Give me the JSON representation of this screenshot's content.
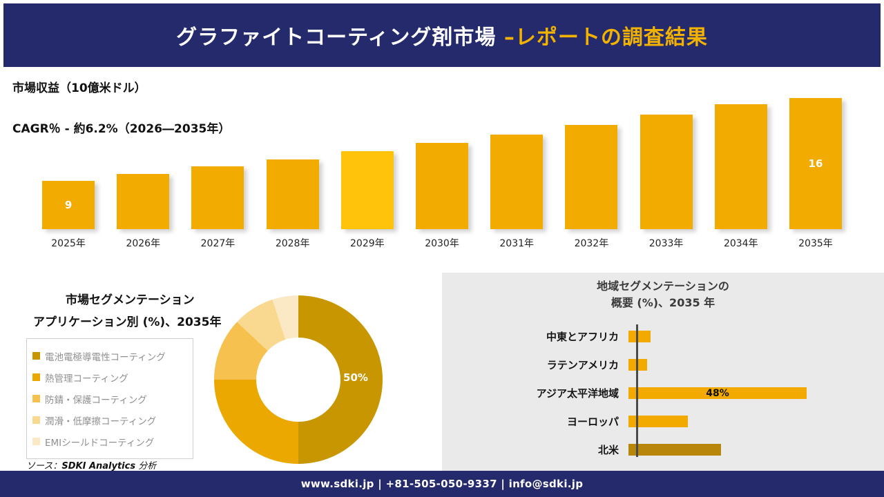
{
  "header": {
    "title_main": "グラファイトコーティング剤市場 ",
    "title_accent": "–レポートの調査結果"
  },
  "colors": {
    "navy": "#252A6D",
    "accent_gold": "#F2B200",
    "bar_gold": "#F2AB00",
    "bar_highlight": "#FFC30B",
    "dark_gold": "#B8860B",
    "panel_gray": "#EAEAEA"
  },
  "chart_data": [
    {
      "type": "bar",
      "title": "市場収益（10億米ドル）",
      "subtitle": "CAGR％ - 約6.2%（2026―2035年）",
      "categories": [
        "2025年",
        "2026年",
        "2027年",
        "2028年",
        "2029年",
        "2030年",
        "2031年",
        "2032年",
        "2033年",
        "2034年",
        "2035年"
      ],
      "values": [
        9,
        9.6,
        10.2,
        10.8,
        11.5,
        12.2,
        12.9,
        13.7,
        14.6,
        15.5,
        16
      ],
      "value_labels": {
        "first": "9",
        "last": "16"
      },
      "bar_color": "#F2AB00",
      "highlight_color": "#FFC30B",
      "highlight_index": 4,
      "ylim": [
        9,
        16
      ],
      "grid": false,
      "legend": "none"
    },
    {
      "type": "pie",
      "title": "市場セグメンテーション",
      "subtitle": "アプリケーション別 (%)、2035年",
      "center_label": "50%",
      "segments": [
        {
          "label": "電池電極導電性コーティング",
          "value": 50,
          "color": "#C89600"
        },
        {
          "label": "熱管理コーティング",
          "value": 25,
          "color": "#EBA800"
        },
        {
          "label": "防錆・保護コーティング",
          "value": 12,
          "color": "#F6C14E"
        },
        {
          "label": "潤滑・低摩擦コーティング",
          "value": 8,
          "color": "#F9D98F"
        },
        {
          "label": "EMIシールドコーティング",
          "value": 5,
          "color": "#FBE9C6"
        }
      ],
      "legend_position": "left"
    },
    {
      "type": "bar-horizontal",
      "title": "地域セグメンテーションの概要 (%)、2035 年",
      "title_line1": "地域セグメンテーションの",
      "title_line2": "概要 (%)、2035 年",
      "categories": [
        "中東とアフリカ",
        "ラテンアメリカ",
        "アジア太平洋地域",
        "ヨーロッパ",
        "北米"
      ],
      "values": [
        6,
        5,
        48,
        16,
        25
      ],
      "bar_colors": [
        "#F2A900",
        "#F2A900",
        "#F2A900",
        "#F2A900",
        "#B8860B"
      ],
      "labeled_index": 2,
      "bar_label": "48%",
      "grid": false
    }
  ],
  "source": {
    "prefix": "ソース：",
    "name": "SDKI Analytics",
    "suffix": " 分析"
  },
  "footer": {
    "text": "www.sdki.jp | +81-505-050-9337 | info@sdki.jp"
  }
}
